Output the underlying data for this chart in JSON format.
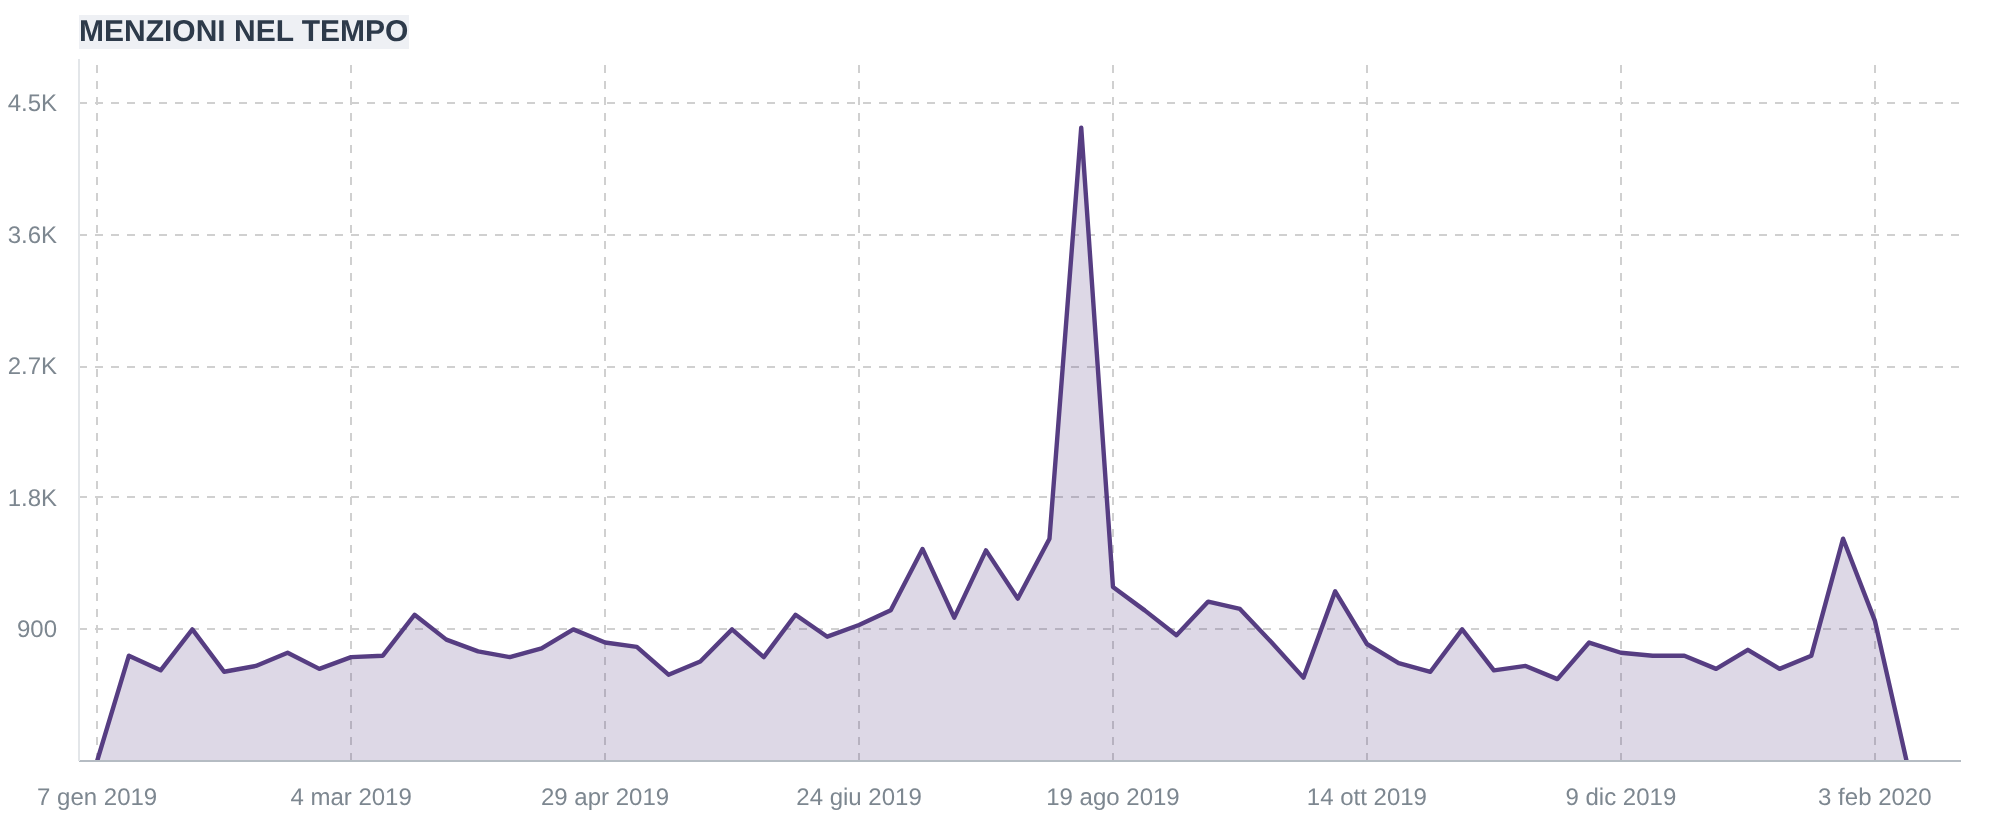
{
  "chart_data": {
    "type": "area",
    "title": "MENZIONI NEL TEMPO",
    "x": [
      "2019-01-07",
      "2019-01-14",
      "2019-01-21",
      "2019-01-28",
      "2019-02-04",
      "2019-02-11",
      "2019-02-18",
      "2019-02-25",
      "2019-03-04",
      "2019-03-11",
      "2019-03-18",
      "2019-03-25",
      "2019-04-01",
      "2019-04-08",
      "2019-04-15",
      "2019-04-22",
      "2019-04-29",
      "2019-05-06",
      "2019-05-13",
      "2019-05-20",
      "2019-05-27",
      "2019-06-03",
      "2019-06-10",
      "2019-06-17",
      "2019-06-24",
      "2019-07-01",
      "2019-07-08",
      "2019-07-15",
      "2019-07-22",
      "2019-07-29",
      "2019-08-05",
      "2019-08-12",
      "2019-08-19",
      "2019-08-26",
      "2019-09-02",
      "2019-09-09",
      "2019-09-16",
      "2019-09-23",
      "2019-09-30",
      "2019-10-07",
      "2019-10-14",
      "2019-10-21",
      "2019-10-28",
      "2019-11-04",
      "2019-11-11",
      "2019-11-18",
      "2019-11-25",
      "2019-12-02",
      "2019-12-09",
      "2019-12-16",
      "2019-12-23",
      "2019-12-30",
      "2020-01-06",
      "2020-01-13",
      "2020-01-20",
      "2020-01-27",
      "2020-02-03",
      "2020-02-10"
    ],
    "series": [
      {
        "color": "#563d82",
        "values": [
          0,
          720,
          620,
          900,
          610,
          650,
          740,
          630,
          710,
          720,
          1000,
          830,
          750,
          710,
          770,
          900,
          810,
          780,
          590,
          680,
          900,
          710,
          1000,
          850,
          930,
          1030,
          1450,
          980,
          1440,
          1110,
          1520,
          4330,
          1190,
          1030,
          860,
          1090,
          1040,
          810,
          570,
          1160,
          800,
          670,
          610,
          900,
          620,
          650,
          560,
          810,
          740,
          720,
          720,
          630,
          760,
          630,
          720,
          1520,
          960,
          0
        ]
      }
    ],
    "xlim": [
      "2019-01-03",
      "2020-02-22"
    ],
    "xticks": [
      {
        "value": "2019-01-07",
        "label": "7 gen 2019"
      },
      {
        "value": "2019-03-04",
        "label": "4 mar 2019"
      },
      {
        "value": "2019-04-29",
        "label": "29 apr 2019"
      },
      {
        "value": "2019-06-24",
        "label": "24 giu 2019"
      },
      {
        "value": "2019-08-19",
        "label": "19 ago 2019"
      },
      {
        "value": "2019-10-14",
        "label": "14 ott 2019"
      },
      {
        "value": "2019-12-09",
        "label": "9 dic 2019"
      },
      {
        "value": "2020-02-03",
        "label": "3 feb 2020"
      }
    ],
    "ylim": [
      0,
      4800
    ],
    "yticks": [
      900,
      {
        "value": 1800,
        "label": "1.8K"
      },
      {
        "value": 2700,
        "label": "2.7K"
      },
      {
        "value": 3600,
        "label": "3.6K"
      },
      {
        "value": 4500,
        "label": "4.5K"
      }
    ],
    "grid": true,
    "line_style": "solid"
  }
}
